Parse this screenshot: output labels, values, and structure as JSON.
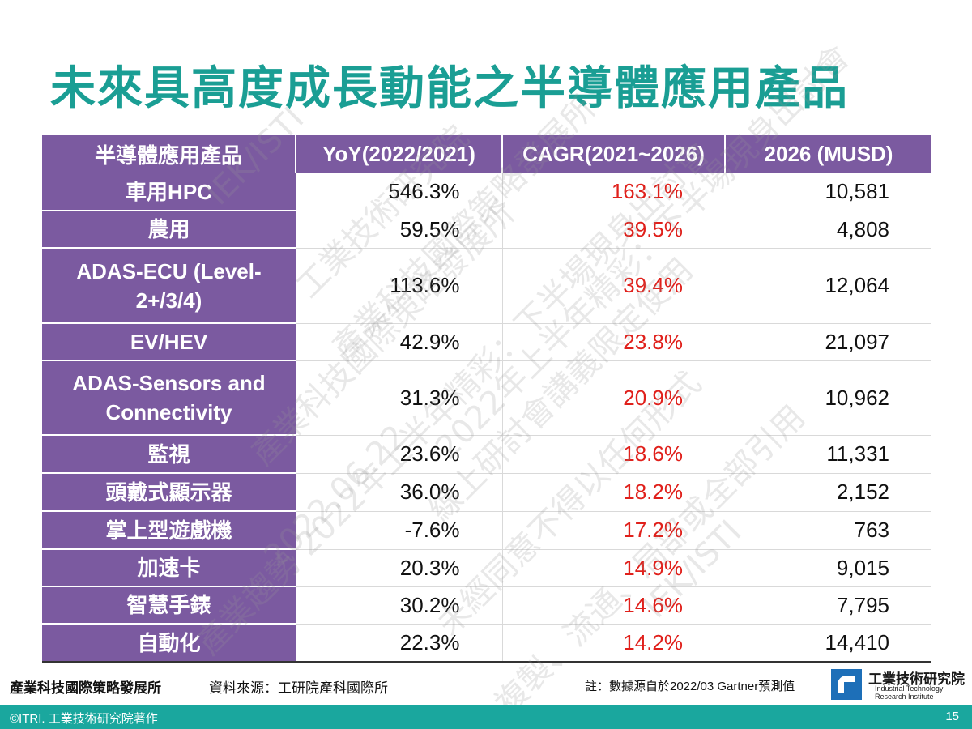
{
  "title": "未來具高度成長動能之半導體應用產品",
  "table": {
    "headers": [
      "半導體應用產品",
      "YoY(2022/2021)",
      "CAGR(2021~2026)",
      "2026 (MUSD)"
    ],
    "rows": [
      {
        "product": "車用HPC",
        "yoy": "546.3%",
        "cagr": "163.1%",
        "value": "10,581"
      },
      {
        "product": "農用",
        "yoy": "59.5%",
        "cagr": "39.5%",
        "value": "4,808"
      },
      {
        "product": "ADAS-ECU (Level-2+/3/4)",
        "yoy": "113.6%",
        "cagr": "39.4%",
        "value": "12,064"
      },
      {
        "product": "EV/HEV",
        "yoy": "42.9%",
        "cagr": "23.8%",
        "value": "21,097"
      },
      {
        "product": "ADAS-Sensors and Connectivity",
        "yoy": "31.3%",
        "cagr": "20.9%",
        "value": "10,962"
      },
      {
        "product": "監視",
        "yoy": "23.6%",
        "cagr": "18.6%",
        "value": "11,331"
      },
      {
        "product": "頭戴式顯示器",
        "yoy": "36.0%",
        "cagr": "18.2%",
        "value": "2,152"
      },
      {
        "product": "掌上型遊戲機",
        "yoy": "-7.6%",
        "cagr": "17.2%",
        "value": "763"
      },
      {
        "product": "加速卡",
        "yoy": "20.3%",
        "cagr": "14.9%",
        "value": "9,015"
      },
      {
        "product": "智慧手錶",
        "yoy": "30.2%",
        "cagr": "14.6%",
        "value": "7,795"
      },
      {
        "product": "自動化",
        "yoy": "22.3%",
        "cagr": "14.2%",
        "value": "14,410"
      }
    ]
  },
  "watermarks": [
    "IEK/ISTI",
    "工業技術研究院",
    "產業科技國際策略發展所",
    "產業科技國際策略發展所",
    "2022年上半年精彩：下半場現身出討會",
    "產業趨勢 2022年上半年精彩：下半場現身出討會",
    "線上研討會講義限定使用",
    "2022.06.22",
    "未經同意不得以任何形式",
    "複製、流通、局部或全部引用",
    "IEK/ISTI"
  ],
  "footer": {
    "org": "產業科技國際策略發展所",
    "source": "資料來源：工研院產科國際所",
    "note": "註：數據源自於2022/03 Gartner預測值",
    "logo_cn": "工業技術研究院",
    "logo_en_line1": "Industrial Technology",
    "logo_en_line2": "Research Institute",
    "copyright": "©ITRI. 工業技術研究院著作",
    "page": "15"
  },
  "colors": {
    "title": "#1a9e94",
    "header_bg": "#7b5aa0",
    "cagr_text": "#e0201b",
    "bottom_bar": "#1aa79e",
    "logo": "#1d6fb8"
  }
}
